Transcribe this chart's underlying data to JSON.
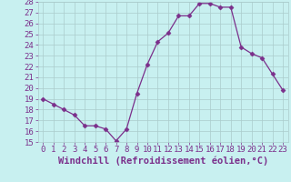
{
  "x": [
    0,
    1,
    2,
    3,
    4,
    5,
    6,
    7,
    8,
    9,
    10,
    11,
    12,
    13,
    14,
    15,
    16,
    17,
    18,
    19,
    20,
    21,
    22,
    23
  ],
  "y": [
    19,
    18.5,
    18,
    17.5,
    16.5,
    16.5,
    16.2,
    15.1,
    16.2,
    19.5,
    22.2,
    24.3,
    25.1,
    26.7,
    26.7,
    27.85,
    27.85,
    27.5,
    27.5,
    23.8,
    23.2,
    22.8,
    21.3,
    19.8
  ],
  "line_color": "#7b2f8b",
  "marker": "D",
  "marker_size": 2.5,
  "bg_color": "#c8f0f0",
  "grid_color": "#aacccc",
  "xlabel": "Windchill (Refroidissement éolien,°C)",
  "ylim": [
    15,
    28
  ],
  "xlim": [
    -0.5,
    23.5
  ],
  "yticks": [
    15,
    16,
    17,
    18,
    19,
    20,
    21,
    22,
    23,
    24,
    25,
    26,
    27,
    28
  ],
  "xticks": [
    0,
    1,
    2,
    3,
    4,
    5,
    6,
    7,
    8,
    9,
    10,
    11,
    12,
    13,
    14,
    15,
    16,
    17,
    18,
    19,
    20,
    21,
    22,
    23
  ],
  "font_color": "#7b2f8b",
  "tick_font_size": 6.5,
  "xlabel_font_size": 7.5
}
